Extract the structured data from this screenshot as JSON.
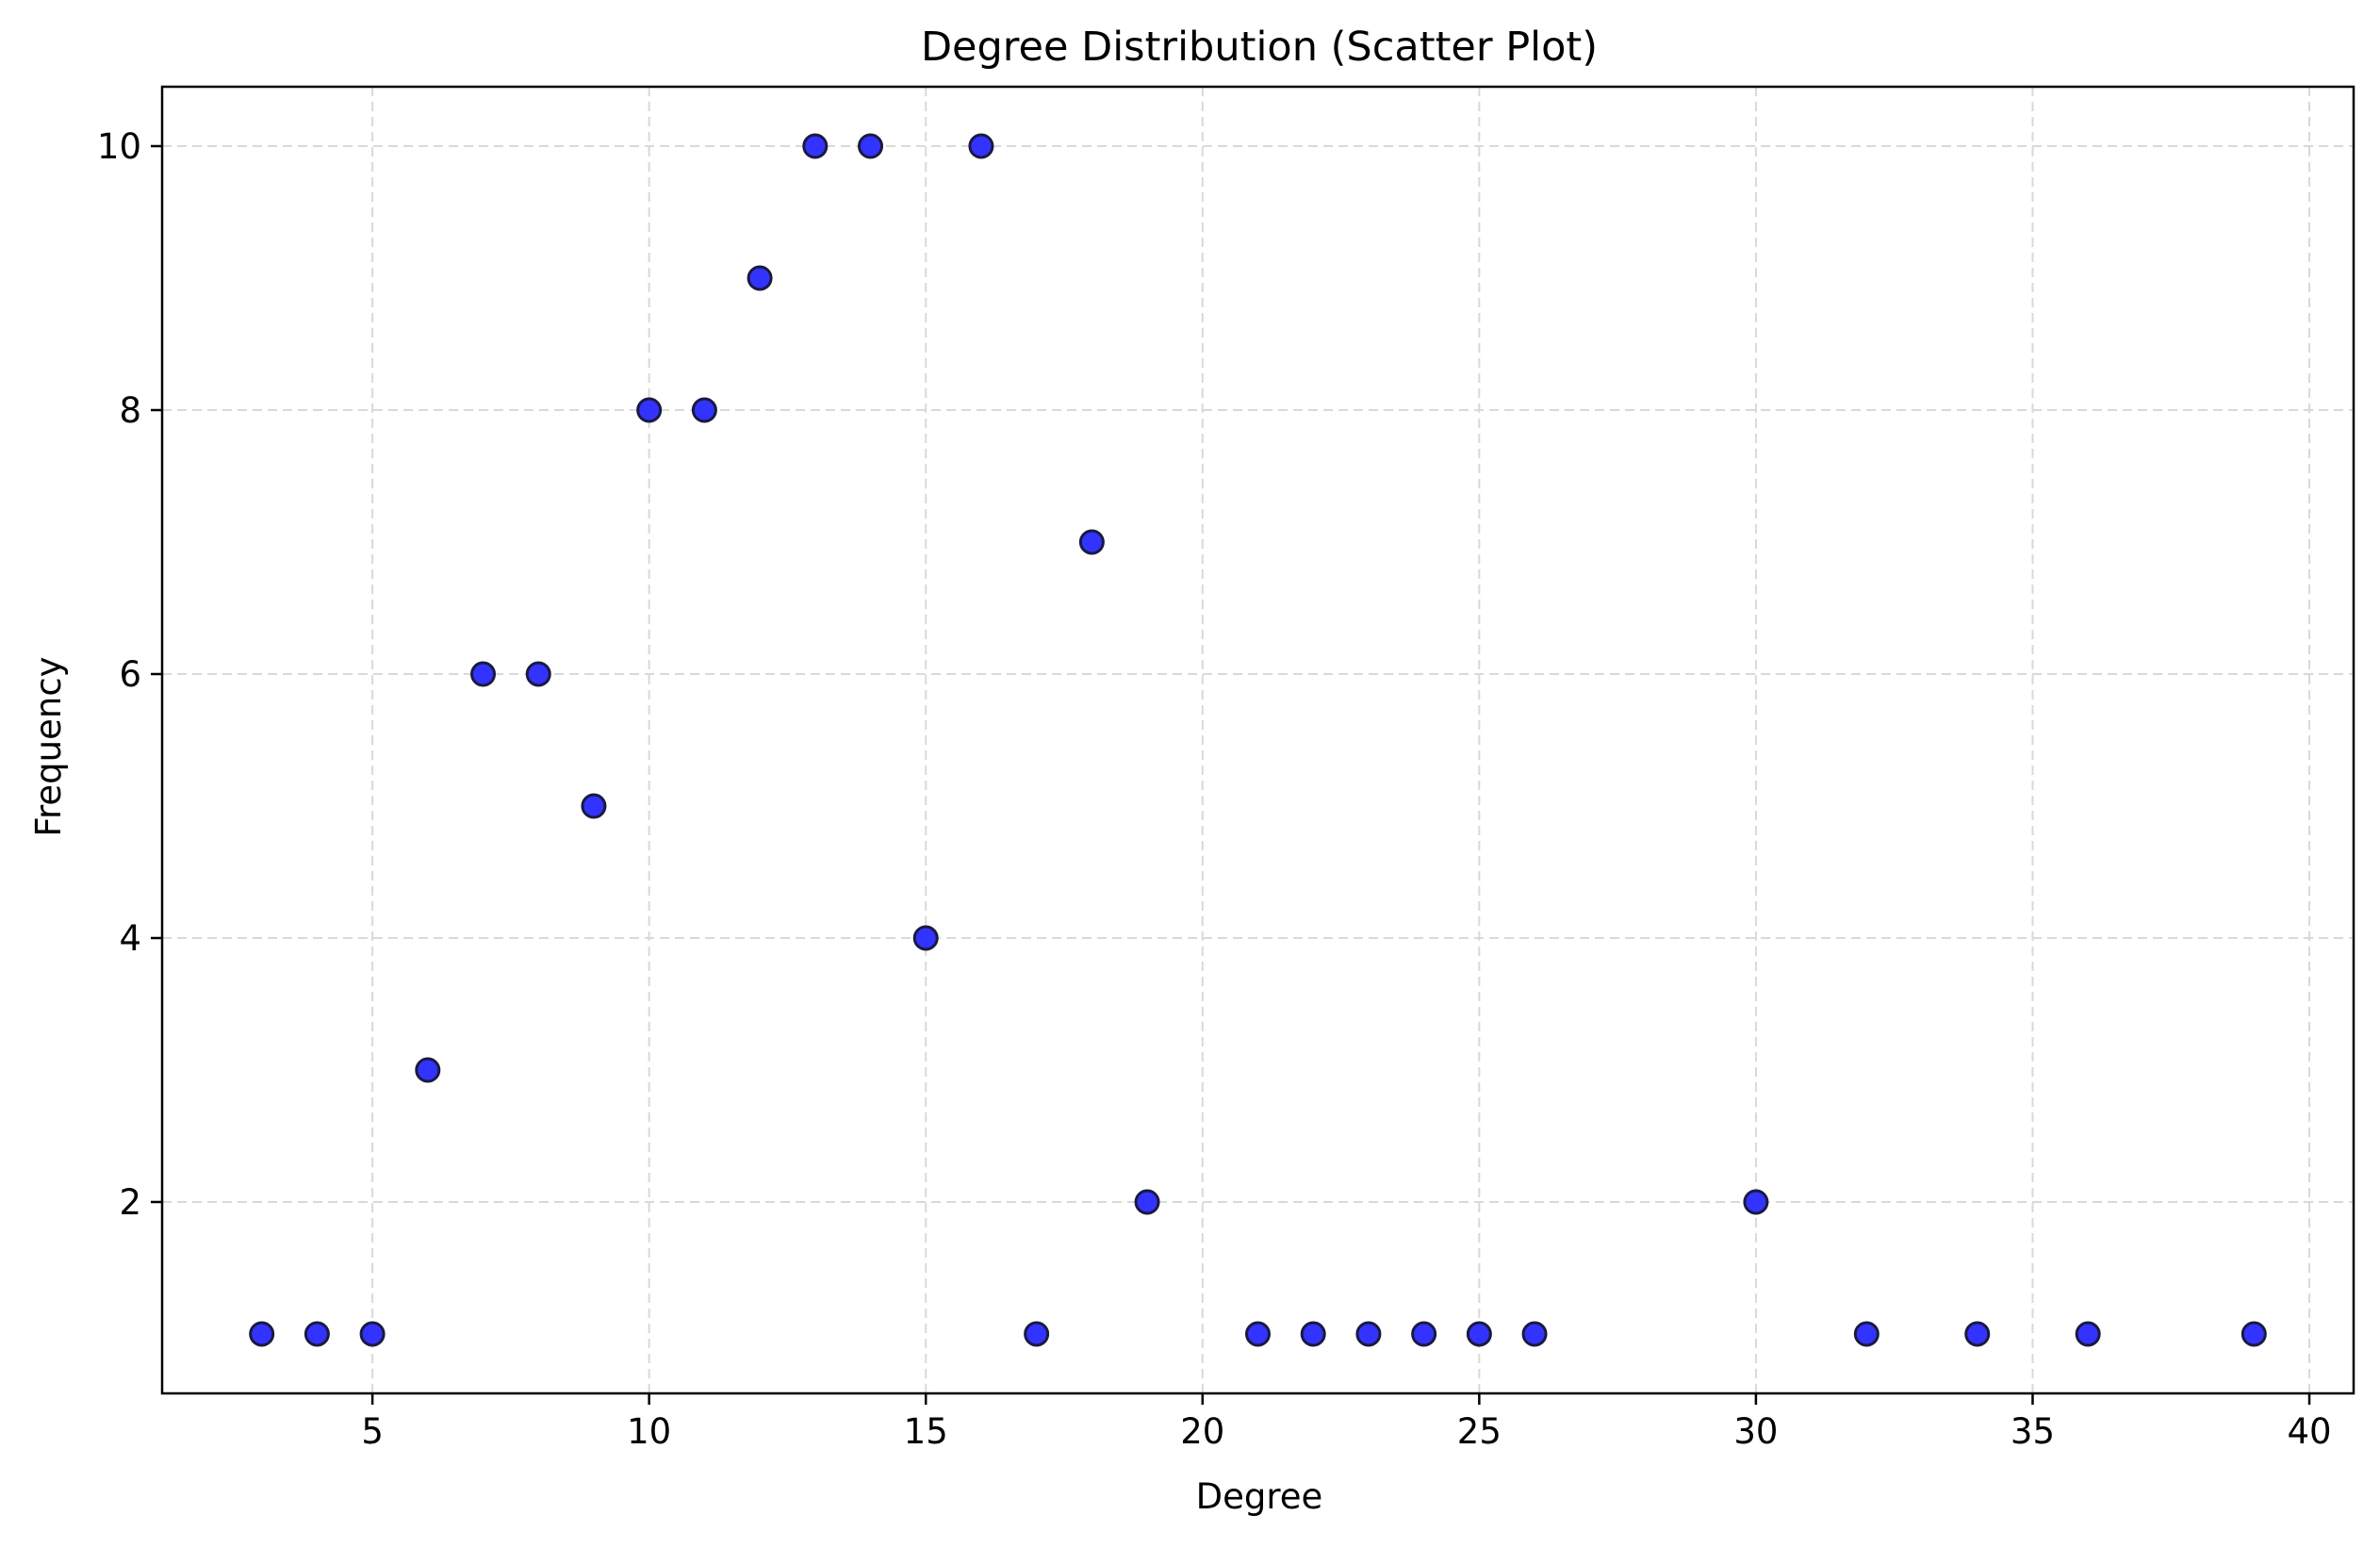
{
  "chart_data": {
    "type": "scatter",
    "title": "Degree Distribution (Scatter Plot)",
    "xlabel": "Degree",
    "ylabel": "Frequency",
    "xlim": [
      1.2,
      40.8
    ],
    "ylim": [
      0.55,
      10.45
    ],
    "xticks": [
      5,
      10,
      15,
      20,
      25,
      30,
      35,
      40
    ],
    "xtick_labels": [
      "5",
      "10",
      "15",
      "20",
      "25",
      "30",
      "35",
      "40"
    ],
    "yticks": [
      2,
      4,
      6,
      8,
      10
    ],
    "ytick_labels": [
      "2",
      "4",
      "6",
      "8",
      "10"
    ],
    "grid": true,
    "legend": "none",
    "marker_color": "#3333ff",
    "marker_edge_color": "#1a1a40",
    "grid_color": "#d9d9d9",
    "points": [
      {
        "x": 3,
        "y": 1
      },
      {
        "x": 4,
        "y": 1
      },
      {
        "x": 5,
        "y": 1
      },
      {
        "x": 6,
        "y": 3
      },
      {
        "x": 7,
        "y": 6
      },
      {
        "x": 8,
        "y": 6
      },
      {
        "x": 9,
        "y": 5
      },
      {
        "x": 10,
        "y": 8
      },
      {
        "x": 11,
        "y": 8
      },
      {
        "x": 12,
        "y": 9
      },
      {
        "x": 13,
        "y": 10
      },
      {
        "x": 14,
        "y": 10
      },
      {
        "x": 15,
        "y": 4
      },
      {
        "x": 16,
        "y": 10
      },
      {
        "x": 17,
        "y": 1
      },
      {
        "x": 18,
        "y": 7
      },
      {
        "x": 19,
        "y": 2
      },
      {
        "x": 21,
        "y": 1
      },
      {
        "x": 22,
        "y": 1
      },
      {
        "x": 23,
        "y": 1
      },
      {
        "x": 24,
        "y": 1
      },
      {
        "x": 25,
        "y": 1
      },
      {
        "x": 26,
        "y": 1
      },
      {
        "x": 30,
        "y": 2
      },
      {
        "x": 32,
        "y": 1
      },
      {
        "x": 34,
        "y": 1
      },
      {
        "x": 36,
        "y": 1
      },
      {
        "x": 39,
        "y": 1
      }
    ]
  }
}
